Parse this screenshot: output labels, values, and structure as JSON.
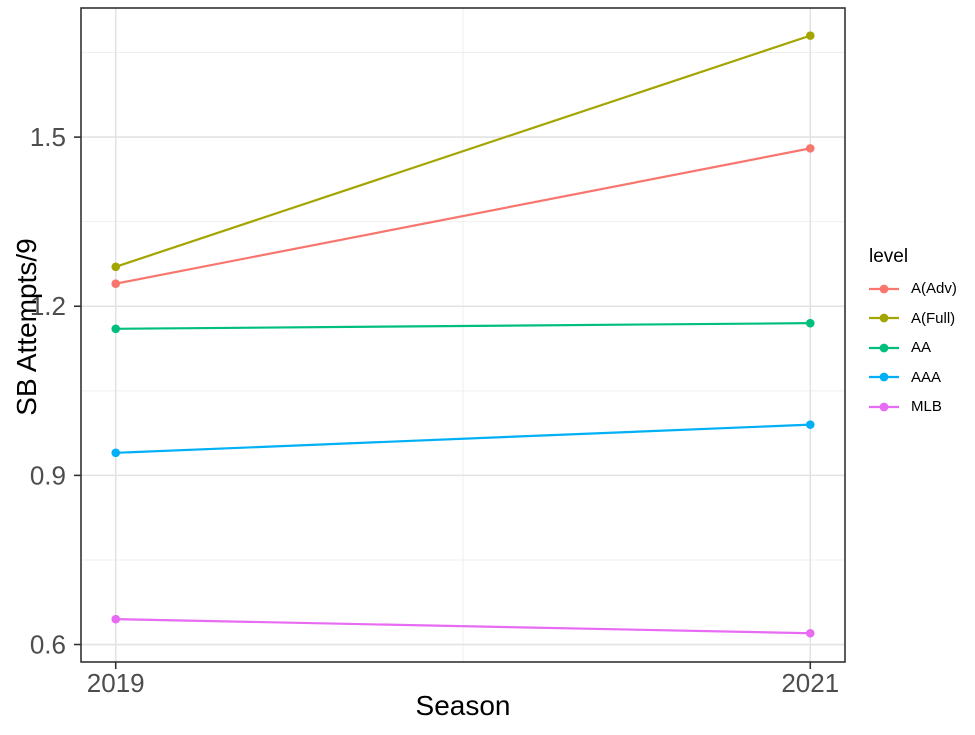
{
  "chart_data": {
    "type": "line",
    "title": "",
    "xlabel": "Season",
    "ylabel": "SB Attempts/9",
    "legend_title": "level",
    "legend_position": "right",
    "x": [
      2019,
      2021
    ],
    "x_tick_labels": [
      "2019",
      "2021"
    ],
    "y_ticks": [
      0.6,
      0.9,
      1.2,
      1.5
    ],
    "y_tick_labels": [
      "0.6",
      "0.9",
      "1.2",
      "1.5"
    ],
    "y_minor_ticks": [
      0.75,
      1.05,
      1.35,
      1.65
    ],
    "x_minor_ticks": [
      2020
    ],
    "xlim": [
      2018.9,
      2021.1
    ],
    "ylim": [
      0.569,
      1.729
    ],
    "grid": true,
    "series": [
      {
        "name": "A(Adv)",
        "color": "#F8766D",
        "values": [
          1.24,
          1.48
        ]
      },
      {
        "name": "A(Full)",
        "color": "#A3A500",
        "values": [
          1.27,
          1.68
        ]
      },
      {
        "name": "AA",
        "color": "#00BF7D",
        "values": [
          1.16,
          1.17
        ]
      },
      {
        "name": "AAA",
        "color": "#00B0F6",
        "values": [
          0.94,
          0.99
        ]
      },
      {
        "name": "MLB",
        "color": "#E76BF3",
        "values": [
          0.645,
          0.62
        ]
      }
    ],
    "theme": {
      "panel_border_color": "#333333",
      "major_grid_color": "#E3E3E3",
      "minor_grid_color": "#EFEFEF",
      "tick_color": "#333333",
      "tick_label_color": "#4D4D4D",
      "background": "#FFFFFF"
    }
  }
}
